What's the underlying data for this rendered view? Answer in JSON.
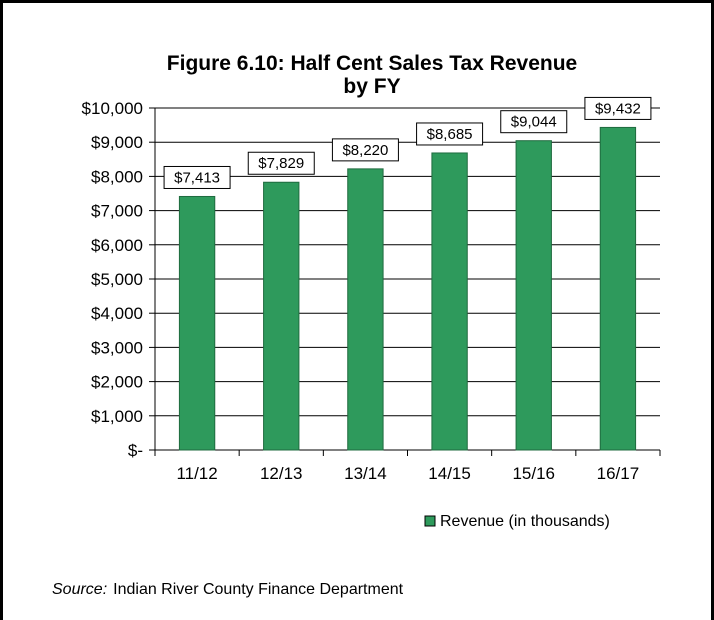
{
  "chart_data": {
    "type": "bar",
    "title_lines": [
      "Figure 6.10:  Half Cent Sales Tax Revenue",
      "by FY"
    ],
    "categories": [
      "11/12",
      "12/13",
      "13/14",
      "14/15",
      "15/16",
      "16/17"
    ],
    "series": [
      {
        "name": "Revenue (in thousands)",
        "values": [
          7413,
          7829,
          8220,
          8685,
          9044,
          9432
        ],
        "labels": [
          "$7,413",
          "$7,829",
          "$8,220",
          "$8,685",
          "$9,044",
          "$9,432"
        ],
        "color": "#2e9a5c"
      }
    ],
    "y_ticks": [
      0,
      1000,
      2000,
      3000,
      4000,
      5000,
      6000,
      7000,
      8000,
      9000,
      10000
    ],
    "y_tick_labels": [
      "$-",
      "$1,000",
      "$2,000",
      "$3,000",
      "$4,000",
      "$5,000",
      "$6,000",
      "$7,000",
      "$8,000",
      "$9,000",
      "$10,000"
    ],
    "ylim": [
      0,
      10000
    ],
    "grid": true,
    "legend": "bottom-right"
  },
  "source": {
    "prefix": "Source:",
    "text": "Indian River County Finance Department"
  },
  "colors": {
    "bar_fill": "#2e9a5c",
    "bar_stroke": "#1f6b3f",
    "border": "#000000"
  }
}
